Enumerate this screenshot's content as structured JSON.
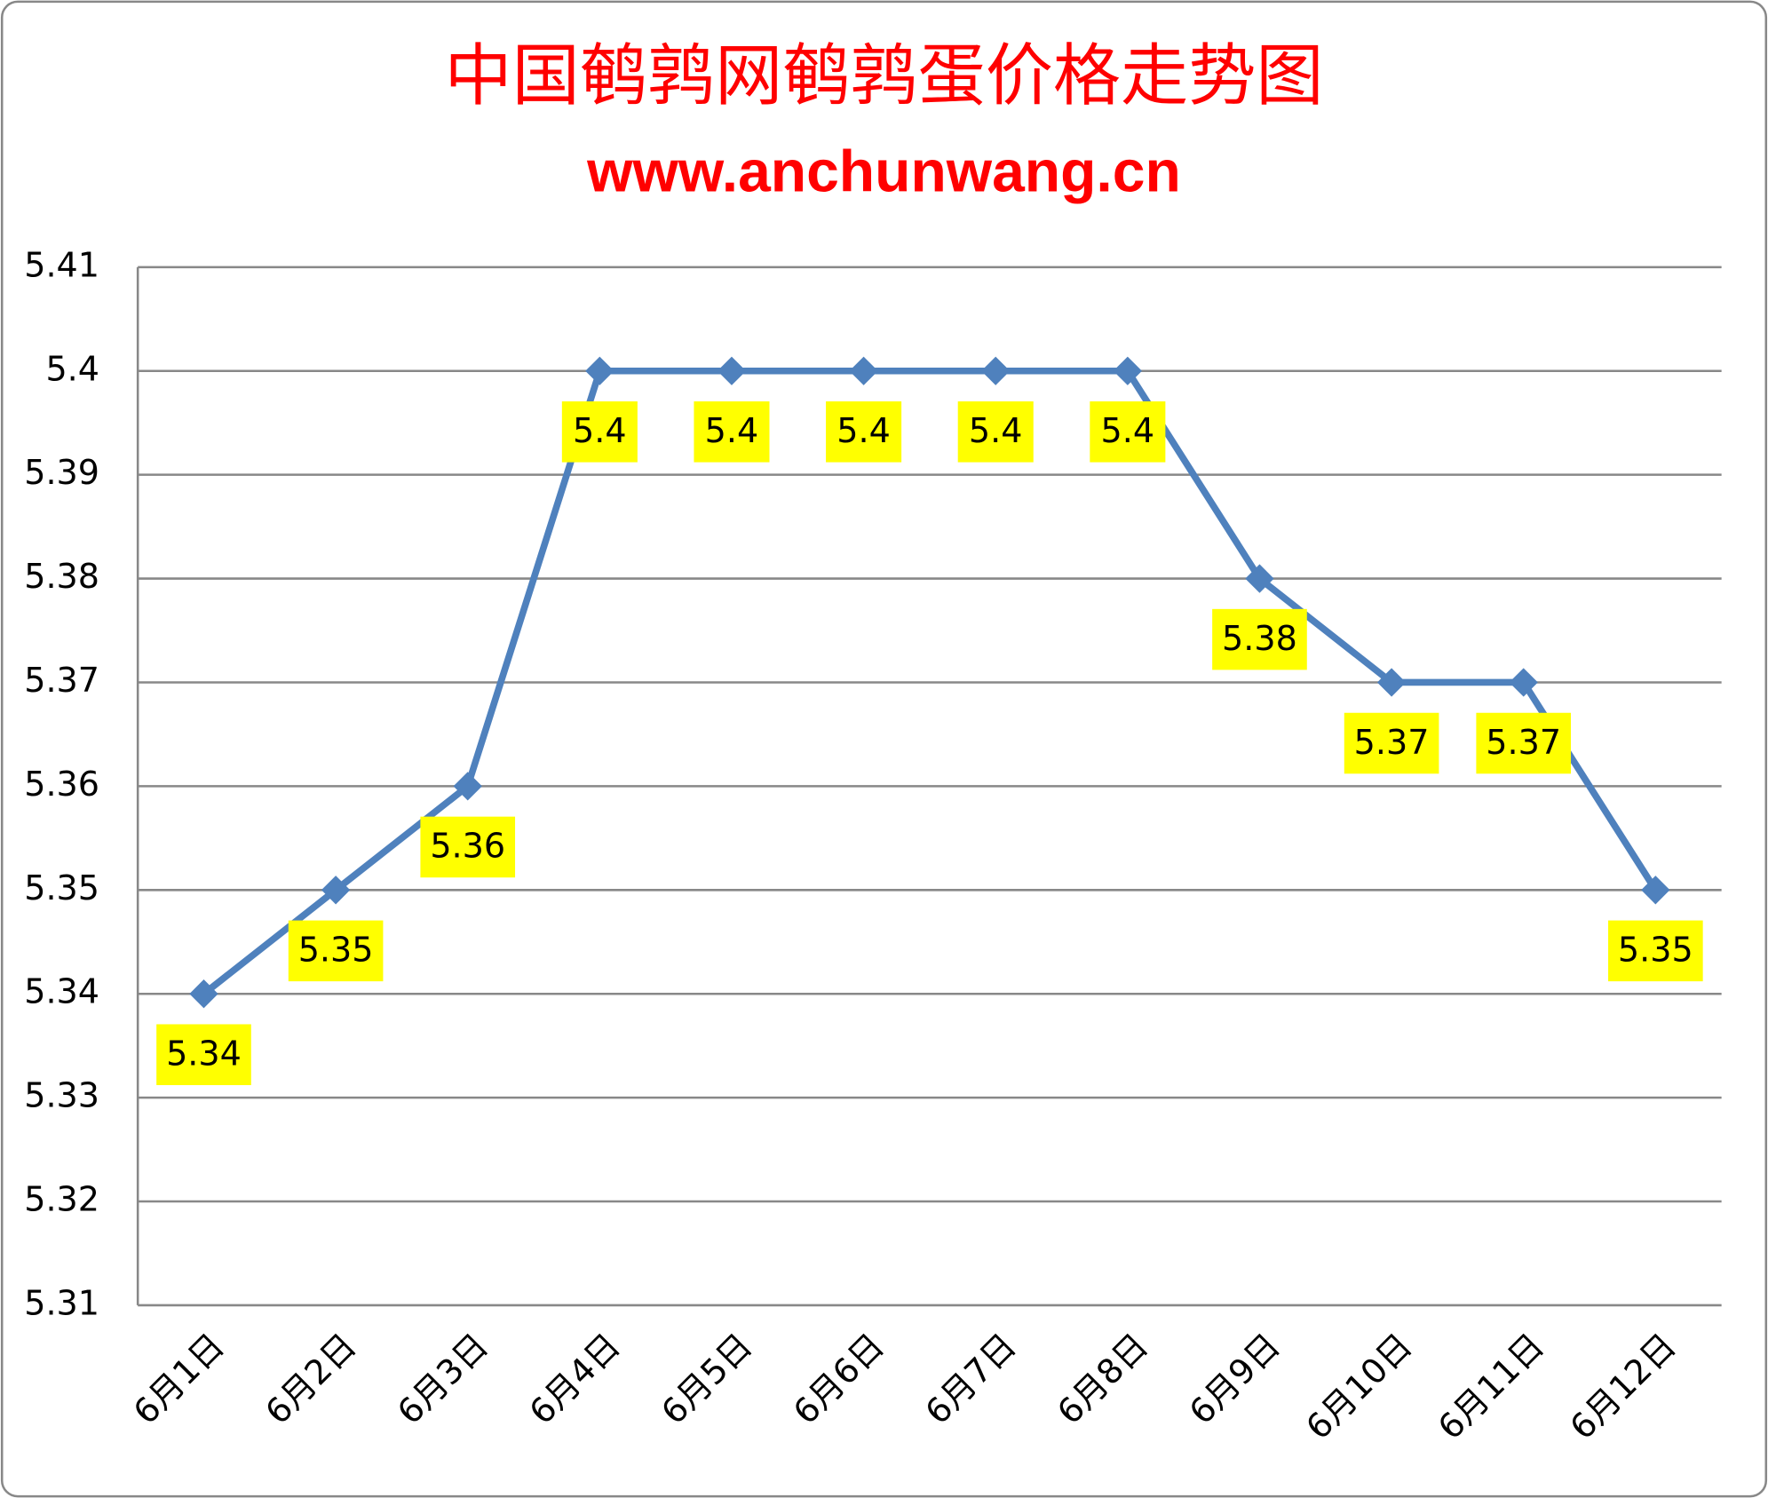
{
  "chart_data": {
    "type": "line",
    "title": "中国鹌鹑网鹌鹑蛋价格走势图",
    "subtitle": "www.anchunwang.cn",
    "categories": [
      "6月1日",
      "6月2日",
      "6月3日",
      "6月4日",
      "6月5日",
      "6月6日",
      "6月7日",
      "6月8日",
      "6月9日",
      "6月10日",
      "6月11日",
      "6月12日"
    ],
    "values": [
      5.34,
      5.35,
      5.36,
      5.4,
      5.4,
      5.4,
      5.4,
      5.4,
      5.38,
      5.37,
      5.37,
      5.35
    ],
    "color": "#4f81bd",
    "label_color": "#ffff00",
    "ylim": [
      5.31,
      5.41
    ],
    "yticks": [
      5.31,
      5.32,
      5.33,
      5.34,
      5.35,
      5.36,
      5.37,
      5.38,
      5.39,
      5.4,
      5.41
    ],
    "grid": true
  }
}
